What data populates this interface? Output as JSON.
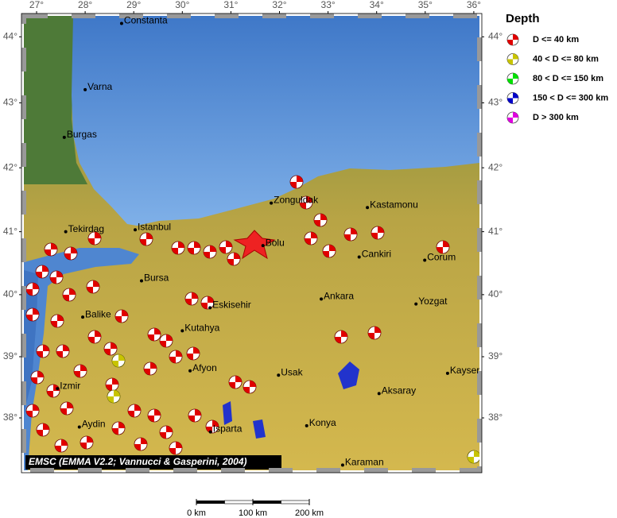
{
  "map": {
    "lon_ticks": [
      {
        "value": 27,
        "label": "27°"
      },
      {
        "value": 28,
        "label": "28°"
      },
      {
        "value": 29,
        "label": "29°"
      },
      {
        "value": 30,
        "label": "30°"
      },
      {
        "value": 31,
        "label": "31°"
      },
      {
        "value": 32,
        "label": "32°"
      },
      {
        "value": 33,
        "label": "33°"
      },
      {
        "value": 34,
        "label": "34°"
      },
      {
        "value": 35,
        "label": "35°"
      },
      {
        "value": 36,
        "label": "36°"
      }
    ],
    "lat_ticks": [
      {
        "value": 38,
        "label": "38°"
      },
      {
        "value": 39,
        "label": "39°"
      },
      {
        "value": 40,
        "label": "40°"
      },
      {
        "value": 41,
        "label": "41°"
      },
      {
        "value": 42,
        "label": "42°"
      },
      {
        "value": 43,
        "label": "43°"
      },
      {
        "value": 44,
        "label": "44°"
      }
    ],
    "cities": [
      {
        "name": "Constanta",
        "lon": 28.75,
        "lat": 44.2
      },
      {
        "name": "Varna",
        "lon": 28.0,
        "lat": 43.2
      },
      {
        "name": "Burgas",
        "lon": 27.57,
        "lat": 42.47
      },
      {
        "name": "Zonguldak",
        "lon": 31.83,
        "lat": 41.45
      },
      {
        "name": "Kastamonu",
        "lon": 33.81,
        "lat": 41.38
      },
      {
        "name": "Tekirdag",
        "lon": 27.6,
        "lat": 41.0
      },
      {
        "name": "Istanbul",
        "lon": 29.03,
        "lat": 41.03
      },
      {
        "name": "Bolu",
        "lon": 31.66,
        "lat": 40.78
      },
      {
        "name": "Cankiri",
        "lon": 33.64,
        "lat": 40.6
      },
      {
        "name": "Corum",
        "lon": 34.99,
        "lat": 40.55
      },
      {
        "name": "Bursa",
        "lon": 29.16,
        "lat": 40.22
      },
      {
        "name": "Ankara",
        "lon": 32.86,
        "lat": 39.93
      },
      {
        "name": "Yozgat",
        "lon": 34.81,
        "lat": 39.85
      },
      {
        "name": "Eskisehir",
        "lon": 30.57,
        "lat": 39.79
      },
      {
        "name": "Balike",
        "lon": 27.95,
        "lat": 39.64
      },
      {
        "name": "Kutahya",
        "lon": 30.0,
        "lat": 39.42
      },
      {
        "name": "Kayseri",
        "lon": 35.46,
        "lat": 38.73
      },
      {
        "name": "Afyon",
        "lon": 30.16,
        "lat": 38.77
      },
      {
        "name": "Usak",
        "lon": 31.98,
        "lat": 38.7
      },
      {
        "name": "Izmir",
        "lon": 27.43,
        "lat": 38.48
      },
      {
        "name": "Aksaray",
        "lon": 34.05,
        "lat": 38.4
      },
      {
        "name": "Aydin",
        "lon": 27.88,
        "lat": 37.85
      },
      {
        "name": "Isparta",
        "lon": 30.58,
        "lat": 37.77
      },
      {
        "name": "Konya",
        "lon": 32.56,
        "lat": 37.87
      },
      {
        "name": "Karaman",
        "lon": 33.3,
        "lat": 37.22
      }
    ],
    "legend": {
      "title": "Depth",
      "entries": [
        {
          "label": "D <= 40 km",
          "color": "#e00000"
        },
        {
          "label": "40 < D <= 80 km",
          "color": "#c8c400"
        },
        {
          "label": "80 < D <= 150 km",
          "color": "#00e000"
        },
        {
          "label": "150 < D <= 300 km",
          "color": "#0000c8"
        },
        {
          "label": "D > 300 km",
          "color": "#e000e0"
        }
      ]
    },
    "credit": "EMSC (EMMA V2.2; Vannucci & Gasperini, 2004)",
    "scale_labels": [
      "0 km",
      "100 km",
      "200 km"
    ]
  }
}
